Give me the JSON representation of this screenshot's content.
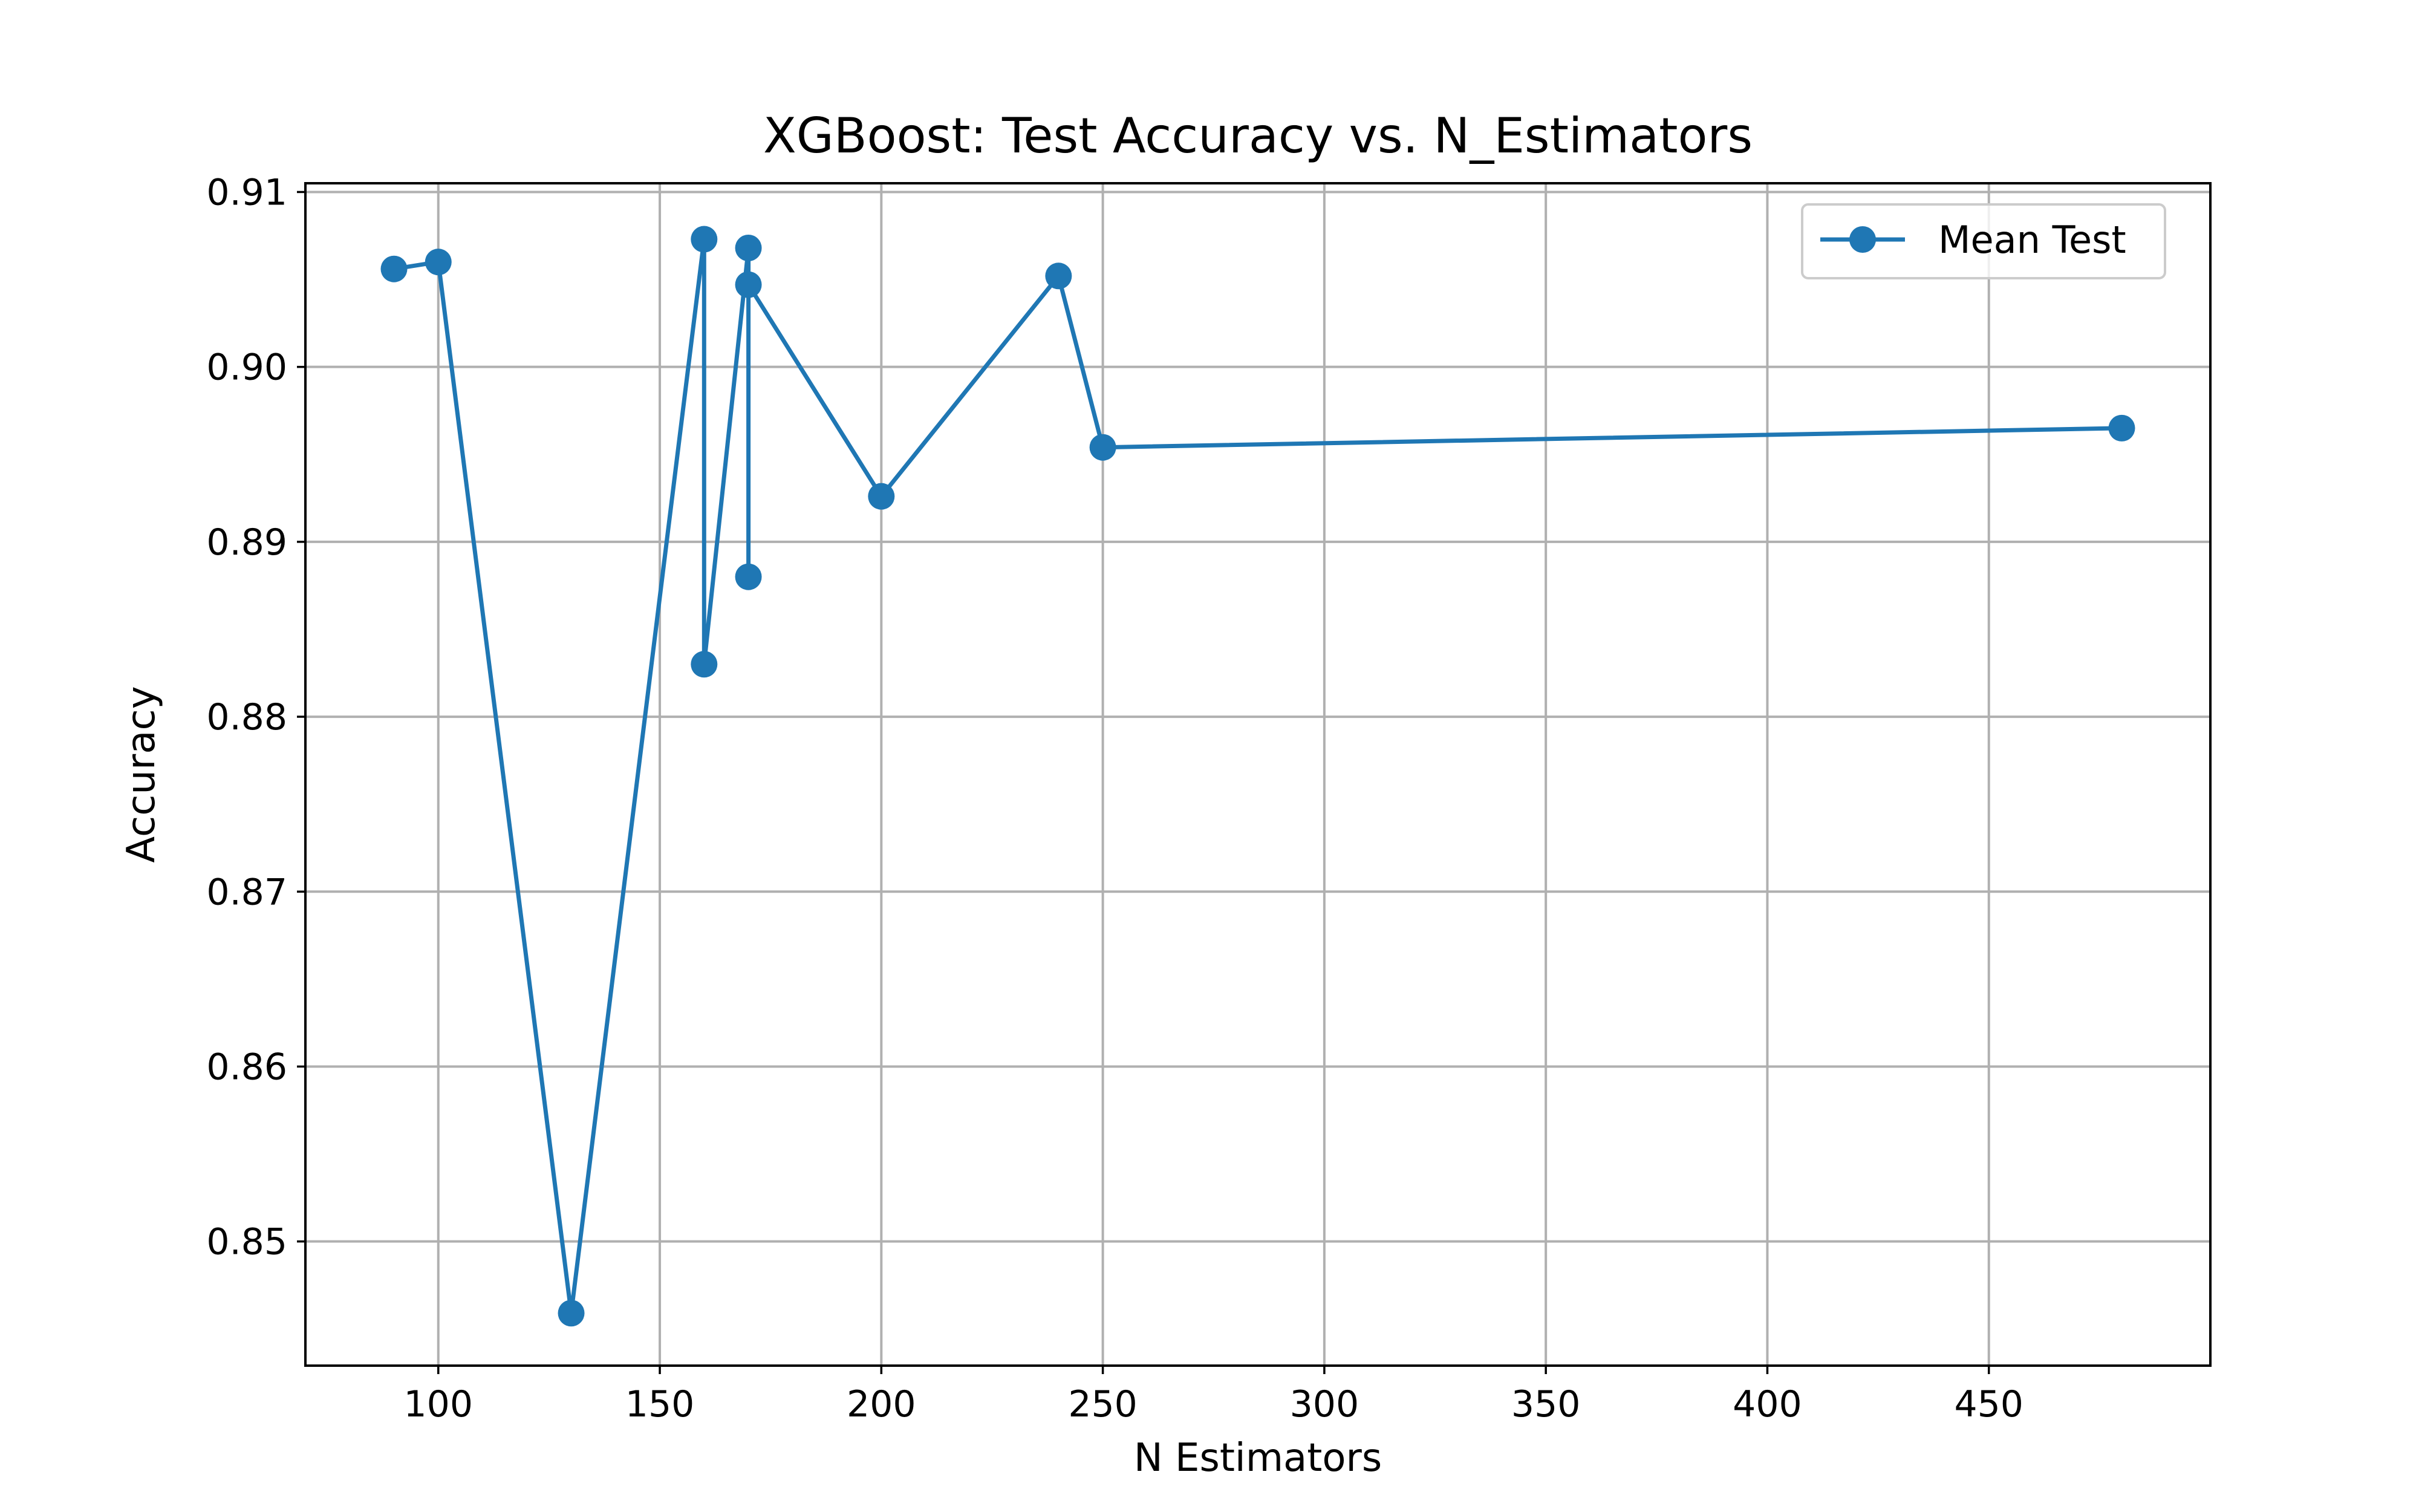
{
  "chart_data": {
    "type": "line",
    "title": "XGBoost: Test Accuracy vs. N_Estimators",
    "xlabel": "N Estimators",
    "ylabel": "Accuracy",
    "xlim": [
      70,
      500
    ],
    "ylim": [
      0.8429,
      0.9105
    ],
    "xticks": [
      100,
      150,
      200,
      250,
      300,
      350,
      400,
      450
    ],
    "xtick_labels": [
      "100",
      "150",
      "200",
      "250",
      "300",
      "350",
      "400",
      "450"
    ],
    "yticks": [
      0.85,
      0.86,
      0.87,
      0.88,
      0.89,
      0.9,
      0.91
    ],
    "ytick_labels": [
      "0.85",
      "0.86",
      "0.87",
      "0.88",
      "0.89",
      "0.90",
      "0.91"
    ],
    "grid": true,
    "legend_position": "upper right",
    "series": [
      {
        "name": "Mean Test",
        "color": "#1f77b4",
        "marker": "circle",
        "x": [
          90,
          100,
          130,
          160,
          160,
          170,
          170,
          170,
          200,
          240,
          250,
          480
        ],
        "y": [
          0.9056,
          0.906,
          0.8459,
          0.9073,
          0.883,
          0.9068,
          0.888,
          0.9047,
          0.8926,
          0.9052,
          0.8954,
          0.8965
        ]
      }
    ]
  }
}
